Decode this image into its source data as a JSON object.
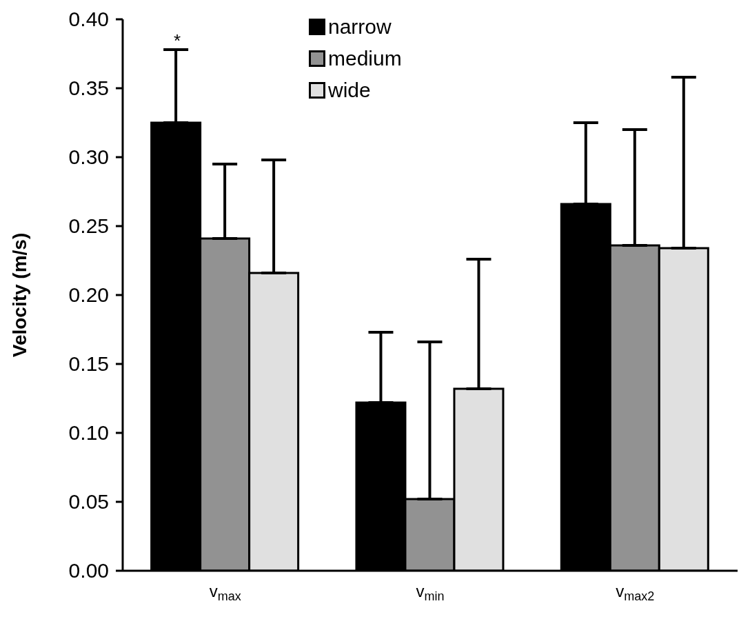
{
  "chart_data": {
    "type": "bar",
    "ylabel": "Velocity (m/s)",
    "categories": [
      "v$_{max}$",
      "v$_{min}$",
      "v$_{max2}$"
    ],
    "series": [
      {
        "name": "narrow",
        "color": "#000000",
        "values": [
          0.325,
          0.122,
          0.266
        ],
        "errors": [
          [
            0.325,
            0.378
          ],
          [
            0.122,
            0.173
          ],
          [
            0.266,
            0.325
          ]
        ]
      },
      {
        "name": "medium",
        "color": "#929292",
        "values": [
          0.241,
          0.052,
          0.236
        ],
        "errors": [
          [
            0.241,
            0.295
          ],
          [
            0.052,
            0.166
          ],
          [
            0.236,
            0.32
          ]
        ]
      },
      {
        "name": "wide",
        "color": "#e0e0e0",
        "values": [
          0.216,
          0.132,
          0.234
        ],
        "errors": [
          [
            0.216,
            0.298
          ],
          [
            0.132,
            0.226
          ],
          [
            0.234,
            0.358
          ]
        ]
      }
    ],
    "ylim": [
      0,
      0.4
    ],
    "yticks": [
      {
        "value": 0,
        "label": "0.00"
      },
      {
        "value": 0.05,
        "label": "0.05"
      },
      {
        "value": 0.1,
        "label": "0.10"
      },
      {
        "value": 0.15,
        "label": "0.15"
      },
      {
        "value": 0.2,
        "label": "0.20"
      },
      {
        "value": 0.25,
        "label": "0.25"
      },
      {
        "value": 0.3,
        "label": "0.30"
      },
      {
        "value": 0.35,
        "label": "0.35"
      },
      {
        "value": 0.4,
        "label": "0.40"
      }
    ],
    "annotations": [
      "*"
    ],
    "legend": "top"
  }
}
